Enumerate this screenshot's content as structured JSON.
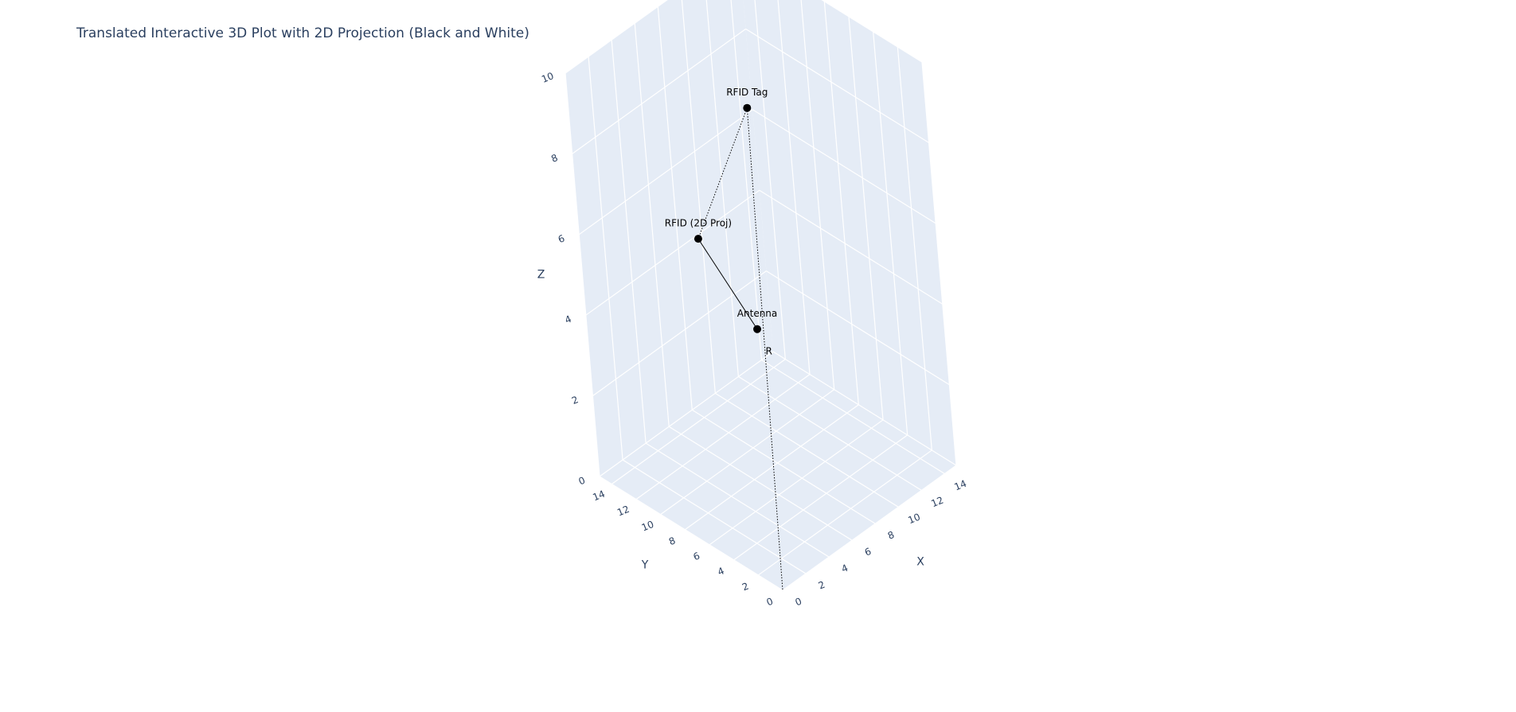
{
  "colors": {
    "pane": "#e5ecf6",
    "grid": "#ffffff",
    "text": "#2a3f5f",
    "marker": "#000000"
  },
  "chart_data": {
    "type": "scatter3d",
    "title": "Translated Interactive 3D Plot with 2D Projection (Black and White)",
    "axes": {
      "x": {
        "label": "X",
        "range": [
          0,
          15
        ],
        "ticks": [
          0,
          2,
          4,
          6,
          8,
          10,
          12,
          14
        ]
      },
      "y": {
        "label": "Y",
        "range": [
          0,
          15
        ],
        "ticks": [
          0,
          2,
          4,
          6,
          8,
          10,
          12,
          14
        ]
      },
      "z": {
        "label": "Z",
        "range": [
          0,
          10
        ],
        "ticks": [
          0,
          2,
          4,
          6,
          8,
          10
        ]
      }
    },
    "grid": true,
    "points": [
      {
        "label": "RFID Tag",
        "x": 7.5,
        "y": 7.5,
        "z": 9.0
      },
      {
        "label": "RFID (2D Proj)",
        "x": 4.5,
        "y": 9.5,
        "z": 6.0
      },
      {
        "label": "Antenna",
        "x": 3.5,
        "y": 4.0,
        "z": 5.0
      }
    ],
    "lines": [
      {
        "from": "RFID Tag",
        "to": "RFID (2D Proj)",
        "style": "dotted"
      },
      {
        "from": "RFID (2D Proj)",
        "to": "Antenna",
        "style": "solid"
      },
      {
        "from": "RFID Tag",
        "to": "origin",
        "style": "dotted",
        "label": "R"
      }
    ]
  }
}
